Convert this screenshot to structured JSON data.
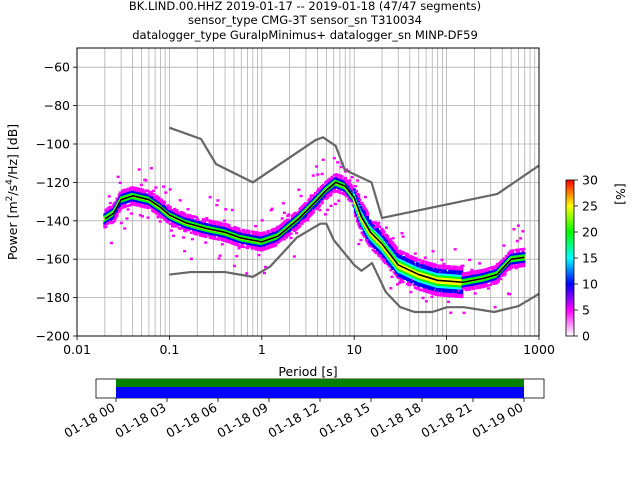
{
  "chart_data": {
    "type": "heatmap",
    "title_lines": [
      "BK.LIND.00.HHZ   2019-01-17 -- 2019-01-18  (47/47 segments)",
      "sensor_type CMG-3T sensor_sn T310034",
      "datalogger_type GuralpMinimus+ datalogger_sn MINP-DF59"
    ],
    "xlabel": "Period [s]",
    "ylabel_parts": [
      "Power [m",
      "2",
      "/s",
      "4",
      "/Hz] [dB]"
    ],
    "xscale": "log",
    "xlim": [
      0.01,
      1000
    ],
    "ylim": [
      -200,
      -50
    ],
    "x_ticks": [
      {
        "value": 0.01,
        "label": "0.01"
      },
      {
        "value": 0.1,
        "label": "0.1"
      },
      {
        "value": 1,
        "label": "1"
      },
      {
        "value": 10,
        "label": "10"
      },
      {
        "value": 100,
        "label": "100"
      },
      {
        "value": 1000,
        "label": "1000"
      }
    ],
    "y_ticks": [
      {
        "value": -60,
        "label": "−60"
      },
      {
        "value": -80,
        "label": "−80"
      },
      {
        "value": -100,
        "label": "−100"
      },
      {
        "value": -120,
        "label": "−120"
      },
      {
        "value": -140,
        "label": "−140"
      },
      {
        "value": -160,
        "label": "−160"
      },
      {
        "value": -180,
        "label": "−180"
      },
      {
        "value": -200,
        "label": "−200"
      }
    ],
    "grid": true,
    "series": [
      {
        "name": "",
        "role": "high-noise-model",
        "color": "#666666",
        "points": [
          [
            0.1,
            -91.5
          ],
          [
            0.22,
            -97.4
          ],
          [
            0.32,
            -110.5
          ],
          [
            0.8,
            -120
          ],
          [
            3.8,
            -98
          ],
          [
            4.6,
            -96.5
          ],
          [
            6.3,
            -101
          ],
          [
            7.9,
            -113.5
          ],
          [
            15.4,
            -120
          ],
          [
            20,
            -138.5
          ],
          [
            354.8,
            -126
          ],
          [
            1000,
            -111.2
          ]
        ]
      },
      {
        "name": "",
        "role": "low-noise-model",
        "color": "#666666",
        "points": [
          [
            0.1,
            -168
          ],
          [
            0.17,
            -166.7
          ],
          [
            0.4,
            -166.7
          ],
          [
            0.8,
            -169.2
          ],
          [
            1.24,
            -163.7
          ],
          [
            2.4,
            -148.7
          ],
          [
            4.3,
            -141.5
          ],
          [
            5,
            -141.5
          ],
          [
            6,
            -150
          ],
          [
            10,
            -163
          ],
          [
            12,
            -166
          ],
          [
            15.6,
            -162
          ],
          [
            21.9,
            -177
          ],
          [
            31.6,
            -185
          ],
          [
            45,
            -187.5
          ],
          [
            70,
            -187.5
          ],
          [
            101,
            -185
          ],
          [
            154,
            -185
          ],
          [
            328,
            -187.5
          ],
          [
            600,
            -184.4
          ],
          [
            1000,
            -178
          ]
        ]
      },
      {
        "name": "",
        "role": "mean",
        "color": "#000000",
        "points": [
          [
            0.02,
            -139
          ],
          [
            0.025,
            -136
          ],
          [
            0.03,
            -129
          ],
          [
            0.04,
            -127
          ],
          [
            0.06,
            -129
          ],
          [
            0.08,
            -133
          ],
          [
            0.1,
            -137
          ],
          [
            0.15,
            -141
          ],
          [
            0.25,
            -144
          ],
          [
            0.4,
            -146
          ],
          [
            0.6,
            -149
          ],
          [
            1,
            -151
          ],
          [
            1.5,
            -148
          ],
          [
            2.5,
            -139
          ],
          [
            4,
            -129
          ],
          [
            5,
            -124
          ],
          [
            6.3,
            -120
          ],
          [
            8,
            -122
          ],
          [
            10,
            -128
          ],
          [
            12,
            -138
          ],
          [
            15,
            -146
          ],
          [
            20,
            -152
          ],
          [
            30,
            -163
          ],
          [
            50,
            -168
          ],
          [
            80,
            -171
          ],
          [
            150,
            -172
          ],
          [
            250,
            -170
          ],
          [
            350,
            -168
          ],
          [
            500,
            -160
          ],
          [
            700,
            -159
          ]
        ]
      }
    ],
    "colorbar": {
      "label": "[%]",
      "range": [
        0,
        30
      ],
      "ticks": [
        "0",
        "5",
        "10",
        "15",
        "20",
        "25",
        "30"
      ],
      "colors": [
        "#ffffff",
        "#ff00ff",
        "#0000ff",
        "#00ffff",
        "#00ff00",
        "#ffff00",
        "#ff0000"
      ]
    }
  },
  "timeline": {
    "ticks": [
      "01-18 00",
      "01-18 03",
      "01-18 06",
      "01-18 09",
      "01-18 12",
      "01-18 15",
      "01-18 18",
      "01-18 21",
      "01-19 00"
    ],
    "bar_colors": [
      "#008000",
      "#0000ff"
    ]
  }
}
